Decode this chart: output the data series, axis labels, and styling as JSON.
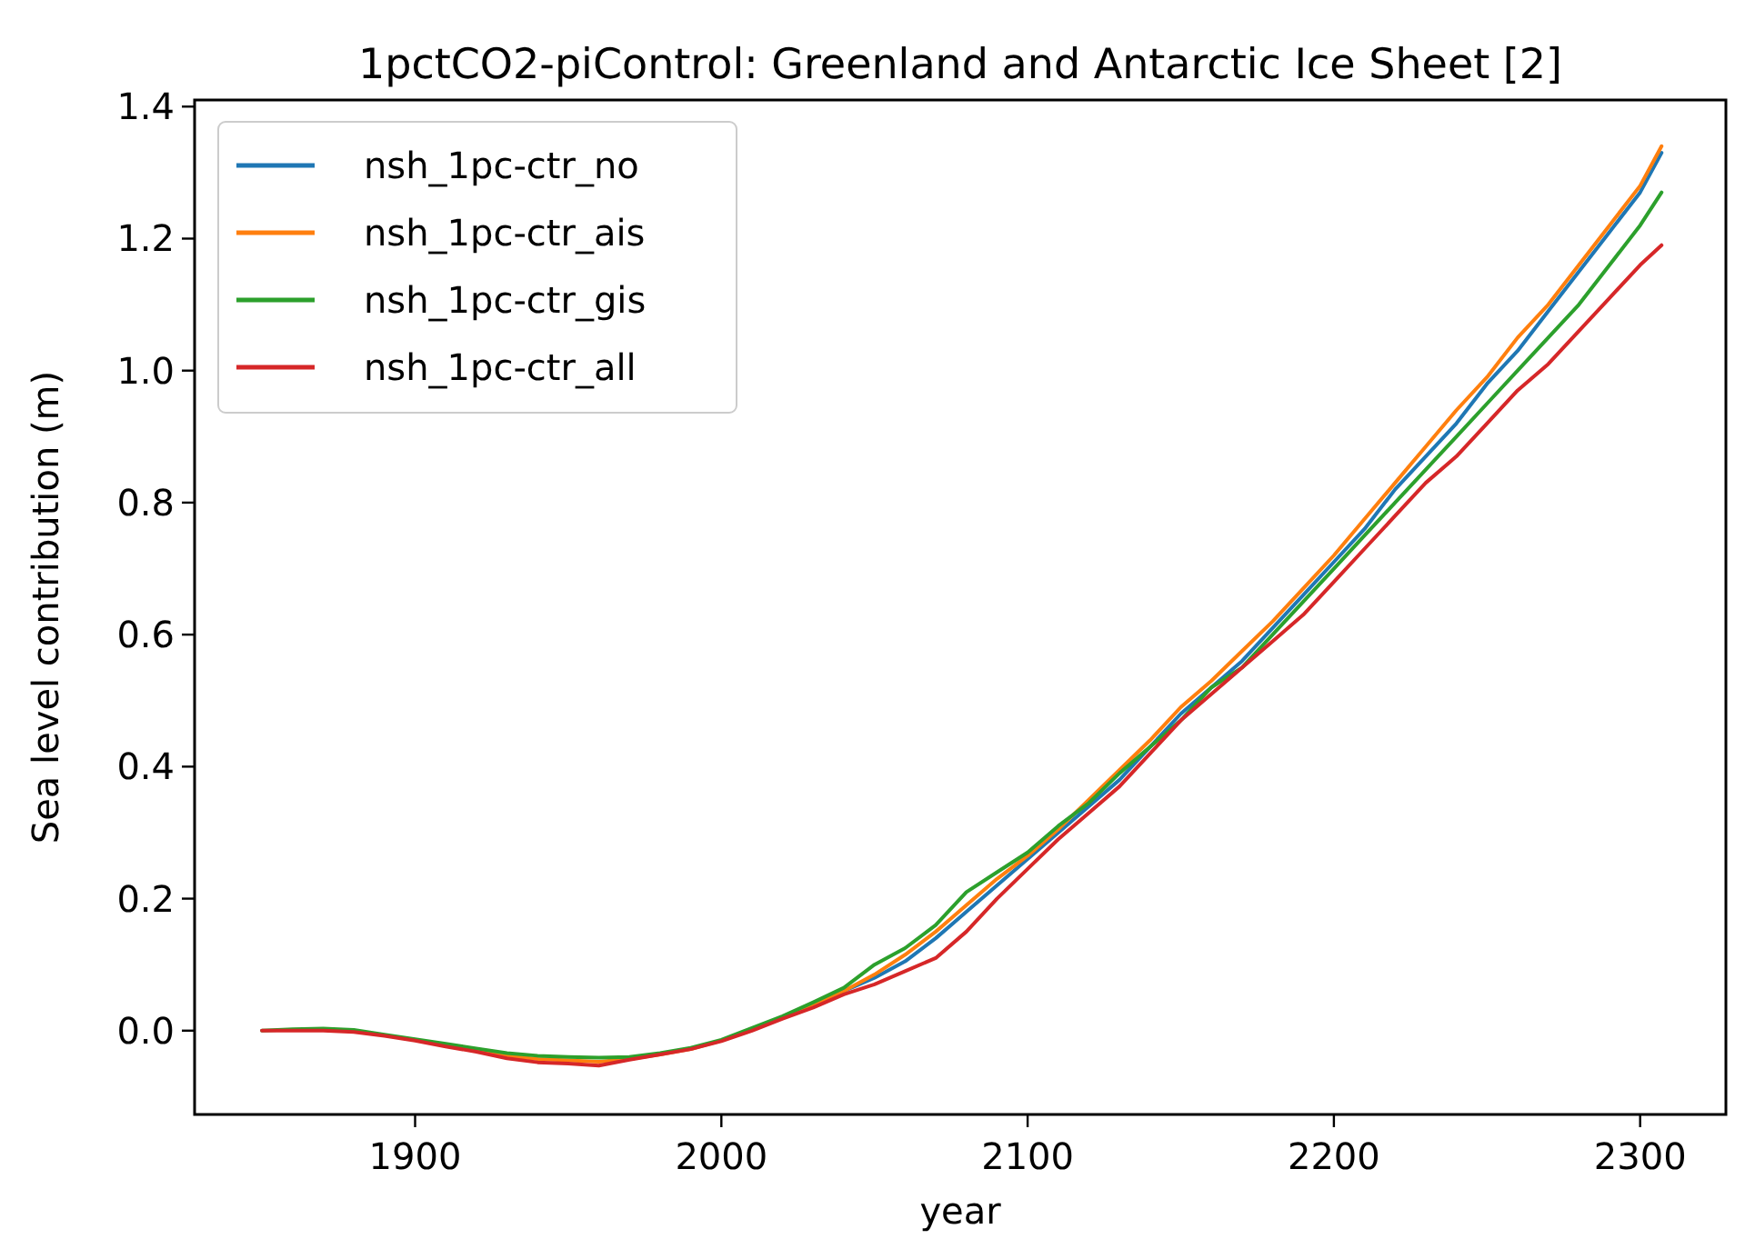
{
  "chart_data": {
    "type": "line",
    "title": "1pctCO2-piControl: Greenland and Antarctic Ice Sheet [2]",
    "xlabel": "year",
    "ylabel": "Sea level contribution (m)",
    "x": [
      1850,
      1860,
      1870,
      1880,
      1890,
      1900,
      1910,
      1920,
      1930,
      1940,
      1950,
      1960,
      1970,
      1980,
      1990,
      2000,
      2010,
      2020,
      2030,
      2040,
      2050,
      2060,
      2070,
      2080,
      2090,
      2100,
      2110,
      2120,
      2130,
      2140,
      2150,
      2160,
      2170,
      2180,
      2190,
      2200,
      2210,
      2220,
      2230,
      2240,
      2250,
      2260,
      2270,
      2280,
      2290,
      2300,
      2307
    ],
    "series": [
      {
        "name": "nsh_1pc-ctr_no",
        "color": "#1f77b4",
        "values": [
          null,
          null,
          null,
          null,
          null,
          null,
          null,
          null,
          null,
          null,
          null,
          null,
          null,
          null,
          null,
          null,
          null,
          null,
          0.04,
          0.06,
          0.08,
          0.105,
          0.14,
          0.18,
          0.22,
          0.26,
          0.3,
          0.34,
          0.38,
          0.43,
          0.48,
          0.52,
          0.56,
          0.61,
          0.66,
          0.71,
          0.76,
          0.82,
          0.87,
          0.92,
          0.98,
          1.03,
          1.09,
          1.15,
          1.21,
          1.27,
          1.33
        ]
      },
      {
        "name": "nsh_1pc-ctr_ais",
        "color": "#ff7f0e",
        "values": [
          null,
          null,
          null,
          null,
          null,
          null,
          -0.022,
          -0.03,
          -0.038,
          -0.043,
          -0.045,
          -0.047,
          -0.043,
          -0.036,
          -0.028,
          -0.015,
          0.002,
          0.02,
          0.04,
          0.06,
          0.085,
          0.115,
          0.15,
          0.19,
          0.23,
          0.265,
          0.305,
          0.35,
          0.395,
          0.44,
          0.49,
          0.53,
          0.575,
          0.62,
          0.67,
          0.72,
          0.775,
          0.83,
          0.885,
          0.94,
          0.99,
          1.05,
          1.1,
          1.16,
          1.22,
          1.28,
          1.34
        ]
      },
      {
        "name": "nsh_1pc-ctr_gis",
        "color": "#2ca02c",
        "values": [
          0,
          0.002,
          0.003,
          0.001,
          -0.006,
          -0.013,
          -0.02,
          -0.027,
          -0.034,
          -0.038,
          -0.04,
          -0.041,
          -0.04,
          -0.034,
          -0.026,
          -0.014,
          0.004,
          0.022,
          0.043,
          0.065,
          0.1,
          0.125,
          0.16,
          0.21,
          0.24,
          0.27,
          0.31,
          0.345,
          0.39,
          0.43,
          0.47,
          0.52,
          0.55,
          0.6,
          0.65,
          0.7,
          0.75,
          0.8,
          0.85,
          0.9,
          0.95,
          1.0,
          1.05,
          1.1,
          1.16,
          1.22,
          1.27
        ]
      },
      {
        "name": "nsh_1pc-ctr_all",
        "color": "#d62728",
        "values": [
          0,
          0,
          0,
          -0.002,
          -0.008,
          -0.015,
          -0.024,
          -0.032,
          -0.042,
          -0.048,
          -0.05,
          -0.053,
          -0.044,
          -0.036,
          -0.028,
          -0.016,
          0,
          0.018,
          0.035,
          0.055,
          0.07,
          0.09,
          0.11,
          0.15,
          0.2,
          0.245,
          0.29,
          0.33,
          0.37,
          0.42,
          0.47,
          0.51,
          0.55,
          0.59,
          0.63,
          0.68,
          0.73,
          0.78,
          0.83,
          0.87,
          0.92,
          0.97,
          1.01,
          1.06,
          1.11,
          1.16,
          1.19
        ]
      }
    ],
    "xlim": [
      1828,
      2328
    ],
    "xticks": [
      1900,
      2000,
      2100,
      2200,
      2300
    ],
    "ylim": [
      -0.127,
      1.41
    ],
    "yticks": [
      {
        "value": 0,
        "label": "0.0"
      },
      0.2,
      0.4,
      0.6,
      0.8,
      {
        "value": 1,
        "label": "1.0"
      },
      1.2,
      1.4
    ],
    "grid": false,
    "legend": "top left",
    "marker": "none",
    "line_style": "solid"
  }
}
